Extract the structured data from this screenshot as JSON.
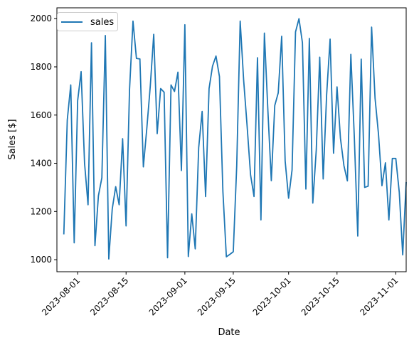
{
  "chart_data": {
    "type": "line",
    "xlabel": "Date",
    "ylabel": "Sales [$]",
    "xlim": [
      "2023-07-26",
      "2023-11-04"
    ],
    "ylim": [
      950,
      2045
    ],
    "x_ticks": [
      "2023-08-01",
      "2023-08-15",
      "2023-09-01",
      "2023-09-15",
      "2023-10-01",
      "2023-10-15",
      "2023-11-01"
    ],
    "y_ticks": [
      1000,
      1200,
      1400,
      1600,
      1800,
      2000
    ],
    "legend": {
      "position": "top-left",
      "entries": [
        "sales"
      ]
    },
    "grid": false,
    "series": [
      {
        "name": "sales",
        "color": "#1f77b4",
        "start_date": "2023-07-28",
        "values": [
          1105,
          1580,
          1725,
          1070,
          1660,
          1780,
          1400,
          1228,
          1900,
          1058,
          1265,
          1340,
          1930,
          1003,
          1210,
          1303,
          1228,
          1502,
          1140,
          1705,
          1990,
          1835,
          1833,
          1385,
          1545,
          1720,
          1935,
          1523,
          1710,
          1695,
          1008,
          1725,
          1698,
          1778,
          1370,
          1975,
          1013,
          1190,
          1045,
          1465,
          1615,
          1262,
          1710,
          1803,
          1845,
          1760,
          1283,
          1012,
          1022,
          1033,
          1390,
          1990,
          1745,
          1555,
          1352,
          1262,
          1838,
          1165,
          1940,
          1622,
          1328,
          1640,
          1692,
          1927,
          1410,
          1255,
          1372,
          1945,
          2000,
          1900,
          1293,
          1918,
          1235,
          1455,
          1840,
          1335,
          1685,
          1915,
          1442,
          1717,
          1503,
          1390,
          1327,
          1852,
          1510,
          1098,
          1832,
          1300,
          1305,
          1965,
          1670,
          1520,
          1307,
          1402,
          1165,
          1420,
          1420,
          1280,
          1020,
          1322
        ]
      }
    ]
  }
}
